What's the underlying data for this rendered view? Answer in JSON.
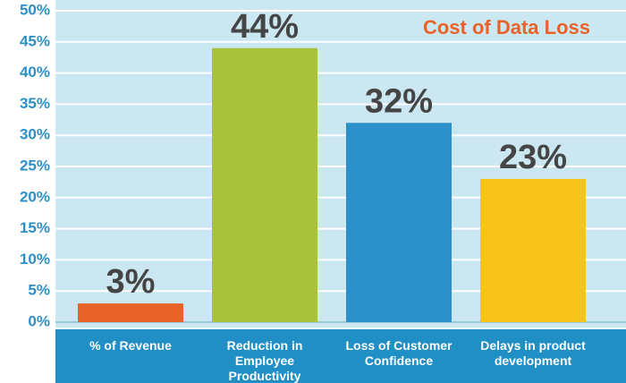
{
  "chart_data": {
    "type": "bar",
    "title": "Cost of Data Loss",
    "categories": [
      "% of Revenue",
      "Reduction in Employee Productivity",
      "Loss of Customer Confidence",
      "Delays in product development"
    ],
    "values": [
      3,
      44,
      32,
      23
    ],
    "value_labels": [
      "3%",
      "44%",
      "32%",
      "23%"
    ],
    "colors": [
      "#e8622a",
      "#a9c23c",
      "#2b8fca",
      "#f6c41a"
    ],
    "ylim": [
      0,
      50
    ],
    "yticks": [
      {
        "value": 0,
        "label": "0%"
      },
      {
        "value": 5,
        "label": "5%"
      },
      {
        "value": 10,
        "label": "10%"
      },
      {
        "value": 15,
        "label": "15%"
      },
      {
        "value": 20,
        "label": "20%"
      },
      {
        "value": 25,
        "label": "25%"
      },
      {
        "value": 30,
        "label": "30%"
      },
      {
        "value": 35,
        "label": "35%"
      },
      {
        "value": 40,
        "label": "40%"
      },
      {
        "value": 45,
        "label": "45%"
      },
      {
        "value": 50,
        "label": "50%"
      }
    ],
    "grid": true
  }
}
